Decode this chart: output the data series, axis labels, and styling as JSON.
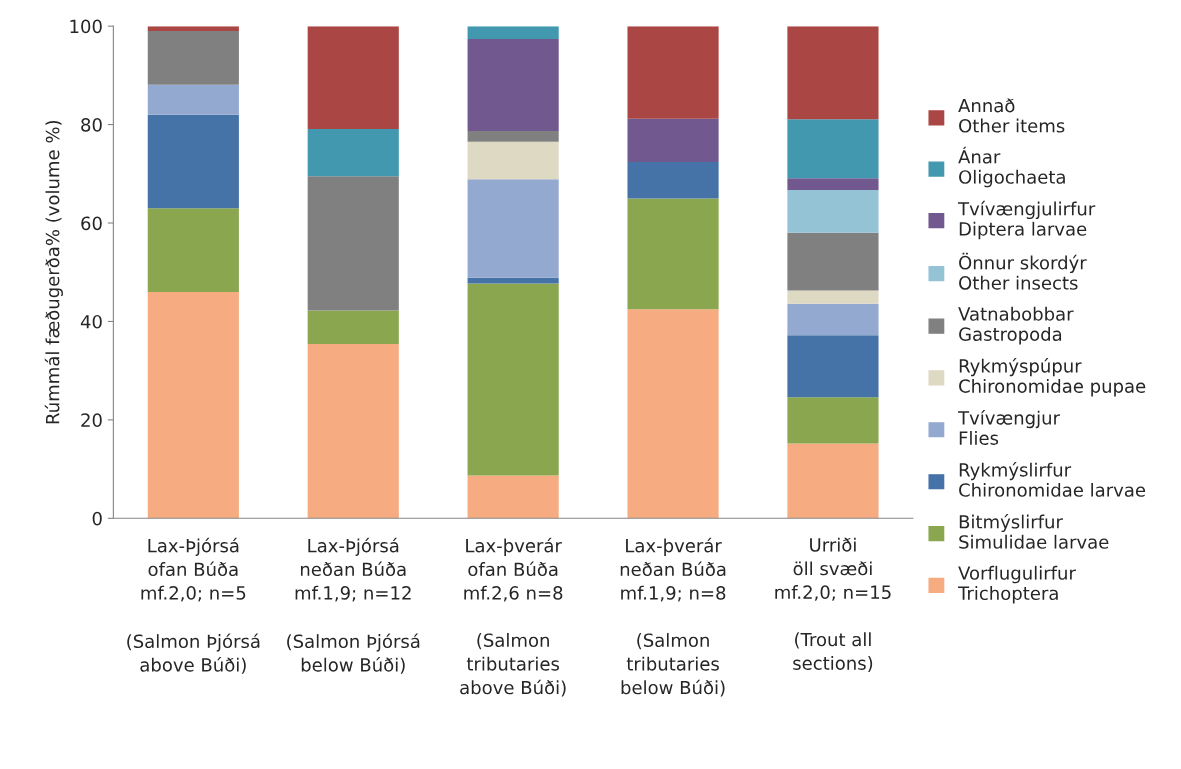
{
  "chart_data": {
    "type": "bar",
    "stacked": true,
    "ylabel": "Rúmmál fæðugerða% (volume %)",
    "categories": [
      "Lax-Þjórsá\nofan Búða\nmf.2,0; n=5\n\n(Salmon Þjórsá\nabove Búði)",
      "Lax-Þjórsá\nneðan Búða\nmf.1,9; n=12\n\n(Salmon Þjórsá\nbelow Búði)",
      "Lax-þverár\nofan Búða\nmf.2,6 n=8\n\n(Salmon\ntributaries\nabove Búði)",
      "Lax-þverár\nneðan Búða\nmf.1,9; n=8\n\n(Salmon\ntributaries\nbelow Búði)",
      "Urriði\nöll svæði\nmf.2,0; n=15\n\n(Trout all\nsections)"
    ],
    "series": [
      {
        "name": "Vorflugulirfur\nTrichoptera",
        "color": "#f6ab80",
        "values": [
          46.0,
          35.4,
          8.7,
          42.5,
          15.2
        ]
      },
      {
        "name": "Bitmýslirfur\nSimulidae larvae",
        "color": "#8aa64e",
        "values": [
          17.0,
          6.8,
          39.0,
          22.5,
          9.4
        ]
      },
      {
        "name": "Rykmýslirfur\nChironomidae larvae",
        "color": "#4572a7",
        "values": [
          19.0,
          0,
          1.2,
          7.4,
          12.6
        ]
      },
      {
        "name": "Tvívængjur\nFlies",
        "color": "#94a9d0",
        "values": [
          6.1,
          0,
          20.0,
          0,
          6.4
        ]
      },
      {
        "name": "Rykmýspúpur\nChironomidae pupae",
        "color": "#ddd9c3",
        "values": [
          0,
          0,
          7.6,
          0,
          2.7
        ]
      },
      {
        "name": "Vatnabobbar\nGastropoda",
        "color": "#808080",
        "values": [
          10.9,
          27.3,
          2.2,
          0,
          11.7
        ]
      },
      {
        "name": "Önnur skordýr\nOther insects",
        "color": "#93c3d4",
        "values": [
          0,
          0,
          0,
          0,
          8.7
        ]
      },
      {
        "name": "Tvívængjulirfur\nDiptera larvae",
        "color": "#71588f",
        "values": [
          0,
          0,
          18.7,
          8.8,
          2.4
        ]
      },
      {
        "name": "Ánar\nOligochaeta",
        "color": "#4198af",
        "values": [
          0,
          9.6,
          2.6,
          0,
          12.0
        ]
      },
      {
        "name": "Annað\nOther items",
        "color": "#aa4643",
        "values": [
          1.0,
          20.9,
          0,
          18.8,
          18.9
        ]
      }
    ],
    "ylim": [
      0,
      100
    ],
    "yticks": [
      0,
      20,
      40,
      60,
      80,
      100
    ],
    "grid": false,
    "legend": "right"
  }
}
